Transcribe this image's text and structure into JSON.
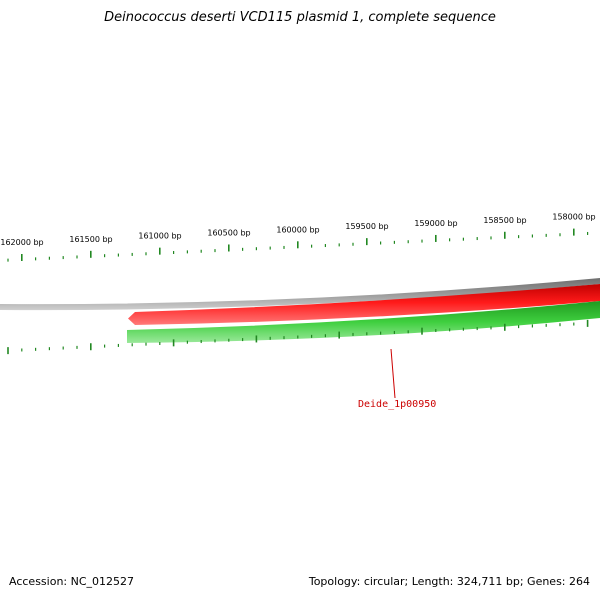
{
  "title": "Deinococcus deserti VCD115 plasmid 1, complete sequence",
  "footer": {
    "accession": "Accession: NC_012527",
    "summary": "Topology: circular; Length: 324,711 bp; Genes: 264"
  },
  "scale_labels": [
    "162000 bp",
    "161500 bp",
    "161000 bp",
    "160500 bp",
    "160000 bp",
    "159500 bp",
    "159000 bp",
    "158500 bp",
    "158000 bp"
  ],
  "gene_label": "Deide_1p00950",
  "colors": {
    "backbone": "#808080",
    "forward_strand": "#ee0000",
    "reverse_strand": "#33bb33",
    "ticks": "#228822",
    "gene_label": "#cc0000"
  }
}
